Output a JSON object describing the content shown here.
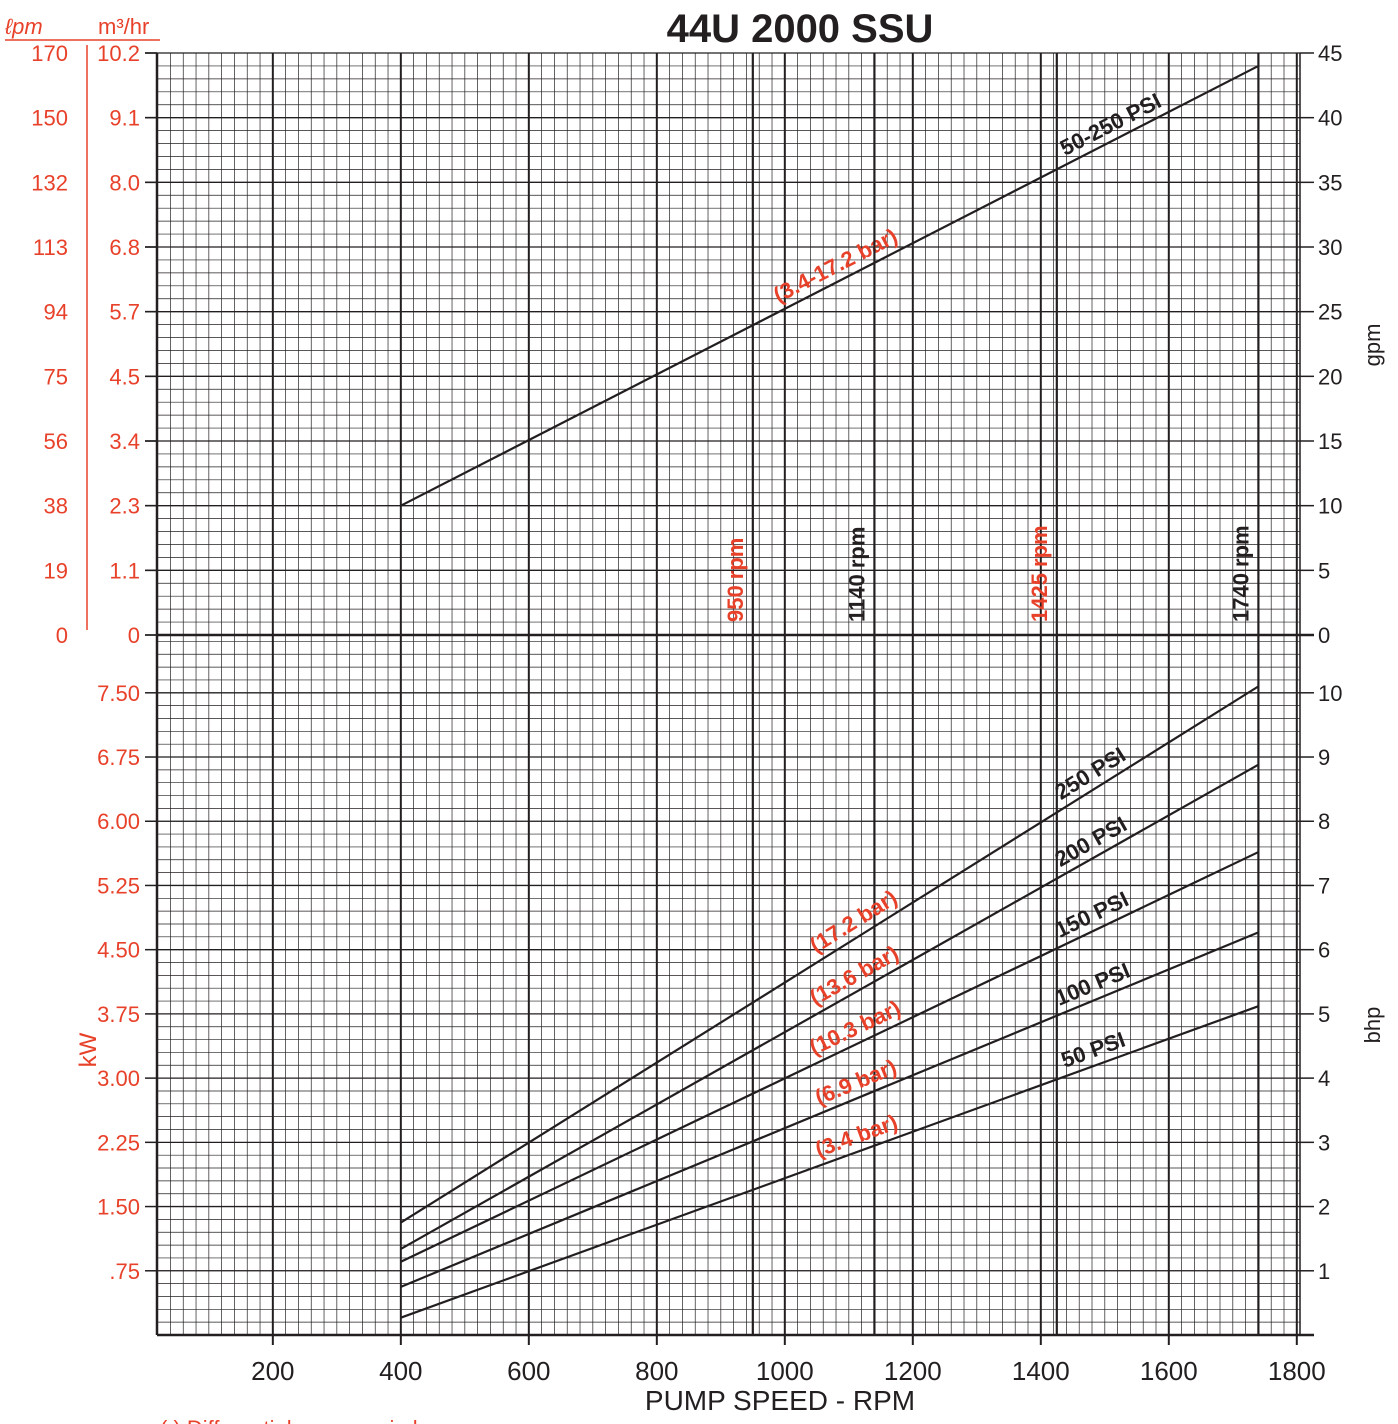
{
  "chart_data": [
    {
      "type": "line",
      "title": "44U 2000 SSU",
      "ylabel": "gpm",
      "xlim": [
        19,
        1805
      ],
      "xticks": [
        200,
        400,
        600,
        800,
        1000,
        1200,
        1400,
        1600,
        1800
      ],
      "ylim": [
        0,
        45
      ],
      "yticks": [
        0,
        5,
        10,
        15,
        20,
        25,
        30,
        35,
        40,
        45
      ],
      "grid": true,
      "left_axes": [
        {
          "label": "ℓpm",
          "ticks": [
            {
              "value": 45,
              "label": "170"
            },
            {
              "value": 40,
              "label": "150"
            },
            {
              "value": 35,
              "label": "132"
            },
            {
              "value": 30,
              "label": "113"
            },
            {
              "value": 25,
              "label": "94"
            },
            {
              "value": 20,
              "label": "75"
            },
            {
              "value": 15,
              "label": "56"
            },
            {
              "value": 10,
              "label": "38"
            },
            {
              "value": 5,
              "label": "19"
            },
            0
          ]
        },
        {
          "label": "m³/hr",
          "ticks": [
            {
              "value": 45,
              "label": "10.2"
            },
            {
              "value": 40,
              "label": "9.1"
            },
            {
              "value": 35,
              "label": "8.0"
            },
            {
              "value": 30,
              "label": "6.8"
            },
            {
              "value": 25,
              "label": "5.7"
            },
            {
              "value": 20,
              "label": "4.5"
            },
            {
              "value": 15,
              "label": "3.4"
            },
            {
              "value": 10,
              "label": "2.3"
            },
            {
              "value": 5,
              "label": "1.1"
            },
            0
          ]
        }
      ],
      "label_color": "#e8412a",
      "x": [
        400,
        1740
      ],
      "series": [
        {
          "name": "50-250 PSI",
          "annotation": "(3.4-17.2 bar)",
          "color": "#231f20",
          "values": [
            10,
            44
          ]
        }
      ],
      "vlines": [
        {
          "x": 950,
          "label": "950 rpm",
          "color": "#e8412a"
        },
        {
          "x": 1140,
          "label": "1140 rpm",
          "color": "#231f20"
        },
        {
          "x": 1425,
          "label": "1425 rpm",
          "color": "#e8412a"
        },
        {
          "x": 1740,
          "label": "1740 rpm",
          "color": "#231f20"
        }
      ]
    },
    {
      "type": "line",
      "xlabel": "PUMP SPEED - RPM",
      "ylabel": "bhp",
      "xlim": [
        19,
        1805
      ],
      "xticks": [
        200,
        400,
        600,
        800,
        1000,
        1200,
        1400,
        1600,
        1800
      ],
      "ylim": [
        0,
        10.9
      ],
      "yticks": [
        1,
        2,
        3,
        4,
        5,
        6,
        7,
        8,
        9,
        10
      ],
      "grid": true,
      "left_axes": [
        {
          "label": "kW",
          "ticks": [
            {
              "value": 10,
              "label": "7.50"
            },
            {
              "value": 9,
              "label": "6.75"
            },
            {
              "value": 8,
              "label": "6.00"
            },
            {
              "value": 7,
              "label": "5.25"
            },
            {
              "value": 6,
              "label": "4.50"
            },
            {
              "value": 5,
              "label": "3.75"
            },
            {
              "value": 4,
              "label": "3.00"
            },
            {
              "value": 3,
              "label": "2.25"
            },
            {
              "value": 2,
              "label": "1.50"
            },
            {
              "value": 1,
              "label": ".75"
            }
          ]
        }
      ],
      "label_color": "#e8412a",
      "x": [
        400,
        1740
      ],
      "series": [
        {
          "name": "250 PSI",
          "annotation": "(17.2 bar)",
          "color": "#231f20",
          "values": [
            1.75,
            10.1
          ]
        },
        {
          "name": "200 PSI",
          "annotation": "(13.6 bar)",
          "color": "#231f20",
          "values": [
            1.34,
            8.88
          ]
        },
        {
          "name": "150 PSI",
          "annotation": "(10.3 bar)",
          "color": "#231f20",
          "values": [
            1.14,
            7.52
          ]
        },
        {
          "name": "100 PSI",
          "annotation": "(6.9 bar)",
          "color": "#231f20",
          "values": [
            0.75,
            6.27
          ]
        },
        {
          "name": "50 PSI",
          "annotation": "(3.4 bar)",
          "color": "#231f20",
          "values": [
            0.27,
            5.12
          ]
        }
      ]
    }
  ],
  "footnote": "( )  Differential pressure in bars"
}
